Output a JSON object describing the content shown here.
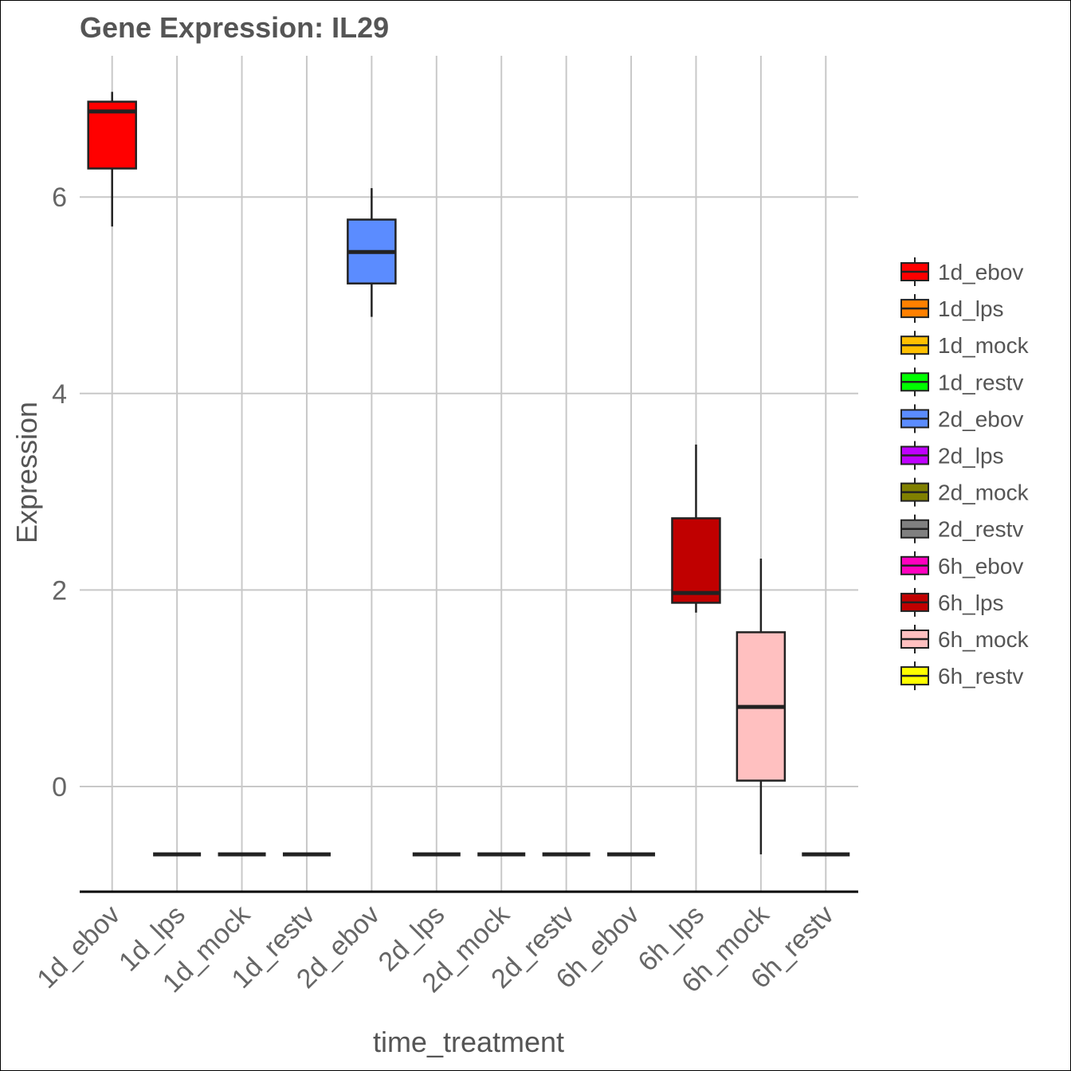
{
  "chart_data": {
    "type": "boxplot",
    "title": "Gene Expression: IL29",
    "xlabel": "time_treatment",
    "ylabel": "Expression",
    "ylim": [
      -1.07,
      7.3
    ],
    "yticks": [
      0,
      2,
      4,
      6
    ],
    "grid": true,
    "legend_position": "right",
    "categories": [
      "1d_ebov",
      "1d_lps",
      "1d_mock",
      "1d_restv",
      "2d_ebov",
      "2d_lps",
      "2d_mock",
      "2d_restv",
      "6h_ebov",
      "6h_lps",
      "6h_mock",
      "6h_restv"
    ],
    "colors": [
      "#ff0000",
      "#ff8000",
      "#ffbf00",
      "#00ff00",
      "#5b8cff",
      "#bf00ff",
      "#808000",
      "#808080",
      "#ff00bf",
      "#c00000",
      "#ffc0c0",
      "#ffff00"
    ],
    "boxes": [
      {
        "min": 5.7,
        "q1": 6.29,
        "median": 6.87,
        "q3": 6.97,
        "max": 7.07
      },
      {
        "min": -0.69,
        "q1": -0.69,
        "median": -0.69,
        "q3": -0.69,
        "max": -0.69
      },
      {
        "min": -0.69,
        "q1": -0.69,
        "median": -0.69,
        "q3": -0.69,
        "max": -0.69
      },
      {
        "min": -0.69,
        "q1": -0.69,
        "median": -0.69,
        "q3": -0.69,
        "max": -0.69
      },
      {
        "min": 4.78,
        "q1": 5.12,
        "median": 5.44,
        "q3": 5.77,
        "max": 6.09
      },
      {
        "min": -0.69,
        "q1": -0.69,
        "median": -0.69,
        "q3": -0.69,
        "max": -0.69
      },
      {
        "min": -0.69,
        "q1": -0.69,
        "median": -0.69,
        "q3": -0.69,
        "max": -0.69
      },
      {
        "min": -0.69,
        "q1": -0.69,
        "median": -0.69,
        "q3": -0.69,
        "max": -0.69
      },
      {
        "min": -0.69,
        "q1": -0.69,
        "median": -0.69,
        "q3": -0.69,
        "max": -0.69
      },
      {
        "min": 1.77,
        "q1": 1.87,
        "median": 1.97,
        "q3": 2.73,
        "max": 3.48
      },
      {
        "min": -0.69,
        "q1": 0.06,
        "median": 0.81,
        "q3": 1.57,
        "max": 2.32
      },
      {
        "min": -0.69,
        "q1": -0.69,
        "median": -0.69,
        "q3": -0.69,
        "max": -0.69
      }
    ]
  }
}
